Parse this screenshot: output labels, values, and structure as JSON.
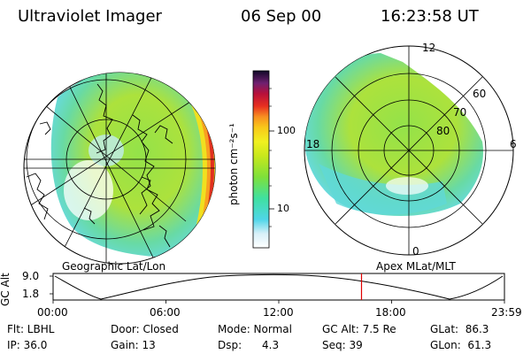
{
  "header": {
    "instrument": "Ultraviolet Imager",
    "date": "06 Sep 00",
    "time": "16:23:58 UT"
  },
  "colorbar": {
    "unit_label": "photon cm⁻²s⁻¹",
    "ticks": [
      "100",
      "10"
    ]
  },
  "left_map": {
    "label": "Geographic Lat/Lon"
  },
  "right_map": {
    "label": "Apex  MLat/MLT",
    "mlt_labels": [
      "12",
      "18",
      "6",
      "0"
    ],
    "lat_labels": [
      "60",
      "70",
      "80"
    ]
  },
  "altitude_plot": {
    "axis_label": "GC Alt",
    "y_ticks": [
      "9.0",
      "1.8"
    ],
    "x_ticks": [
      "00:00",
      "06:00",
      "12:00",
      "18:00",
      "23:59"
    ],
    "current_time_fraction": 0.6833
  },
  "info": {
    "flt": "Flt: LBHL",
    "ip": "IP: 36.0",
    "door": "Door: Closed",
    "gain": "Gain: 13",
    "mode": "Mode: Normal",
    "dsp": "Dsp:      4.3",
    "gcalt": "GC Alt: 7.5 Re",
    "seq": "Seq: 39",
    "glat": "GLat:  86.3",
    "glon": "GLon:  61.3"
  },
  "colors": {
    "current_time_marker": "#e00000"
  }
}
